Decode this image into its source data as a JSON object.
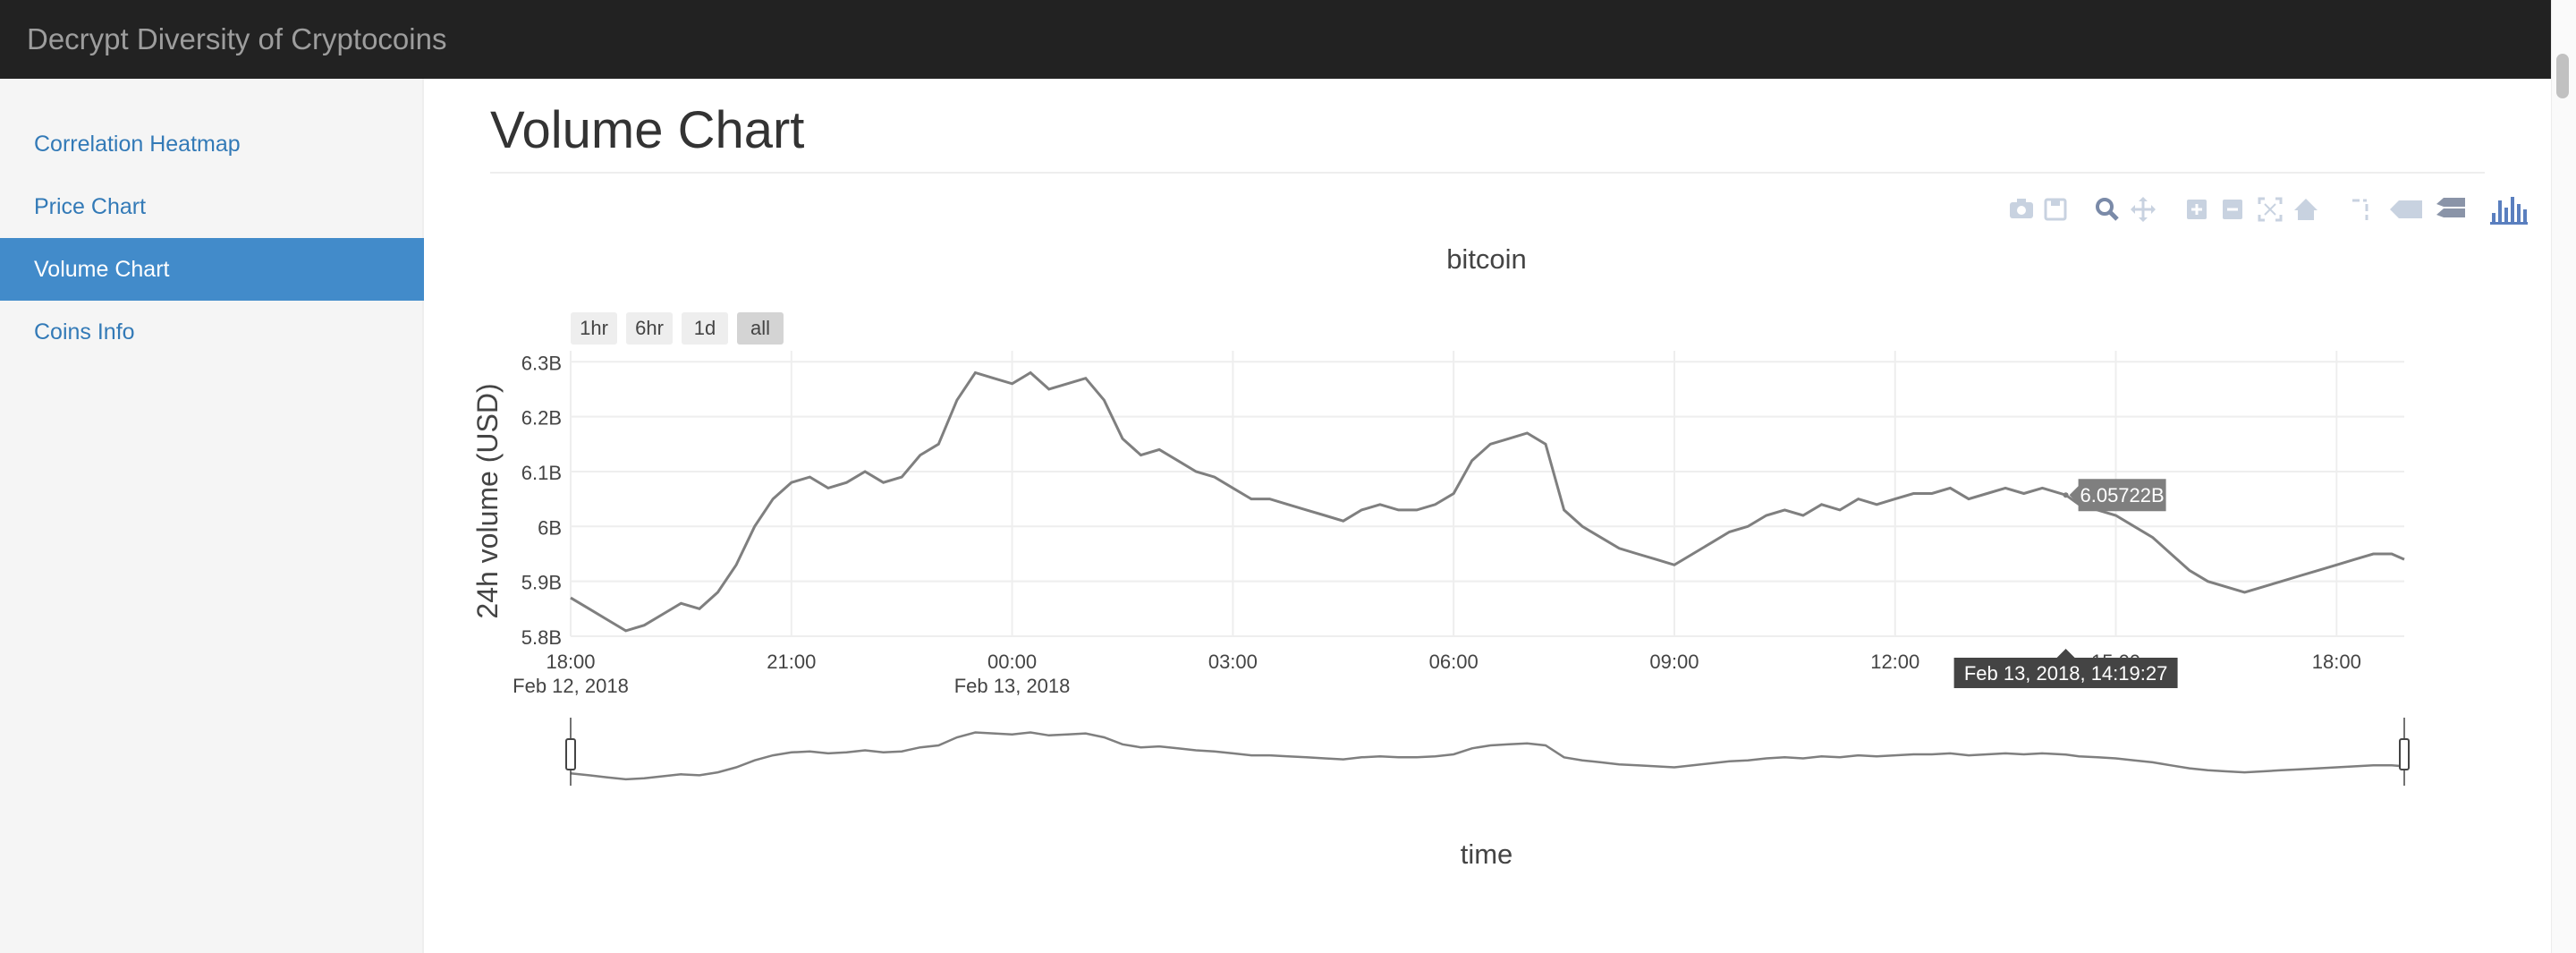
{
  "app": {
    "brand": "Decrypt Diversity of Cryptocoins"
  },
  "sidebar": {
    "items": [
      {
        "label": "Correlation Heatmap",
        "active": false
      },
      {
        "label": "Price Chart",
        "active": false
      },
      {
        "label": "Volume Chart",
        "active": true
      },
      {
        "label": "Coins Info",
        "active": false
      }
    ]
  },
  "main": {
    "title": "Volume Chart"
  },
  "modebar": {
    "buttons": [
      "camera-icon",
      "save-icon",
      "zoom-icon",
      "pan-icon",
      "zoom-in-icon",
      "zoom-out-icon",
      "autoscale-icon",
      "reset-axes-icon",
      "spike-lines-icon",
      "hover-closest-icon",
      "hover-compare-icon",
      "plotly-logo-icon"
    ]
  },
  "range_selector": {
    "buttons": [
      "1hr",
      "6hr",
      "1d",
      "all"
    ],
    "active": "all"
  },
  "chart_data": {
    "type": "line",
    "title": "bitcoin",
    "xlabel": "time",
    "ylabel": "24h volume (USD)",
    "x_range": [
      "2018-02-12 18:00",
      "2018-02-13 18:55"
    ],
    "ylim": [
      5.8,
      6.32
    ],
    "y_unit": "B",
    "x_ticks": [
      {
        "label": "18:00",
        "sublabel": "Feb 12, 2018"
      },
      {
        "label": "21:00",
        "sublabel": ""
      },
      {
        "label": "00:00",
        "sublabel": "Feb 13, 2018"
      },
      {
        "label": "03:00",
        "sublabel": ""
      },
      {
        "label": "06:00",
        "sublabel": ""
      },
      {
        "label": "09:00",
        "sublabel": ""
      },
      {
        "label": "12:00",
        "sublabel": ""
      },
      {
        "label": "15:00",
        "sublabel": ""
      },
      {
        "label": "18:00",
        "sublabel": ""
      }
    ],
    "y_ticks": [
      "5.8B",
      "5.9B",
      "6B",
      "6.1B",
      "6.2B",
      "6.3B"
    ],
    "grid": true,
    "range_slider": true,
    "hover": {
      "x_label": "Feb 13, 2018, 14:19:27",
      "y_label": "6.05722B",
      "x": 20.32,
      "y": 6.05722
    },
    "series": [
      {
        "color": "#7f7f7f",
        "x": [
          0,
          0.25,
          0.5,
          0.75,
          1,
          1.25,
          1.5,
          1.75,
          2,
          2.25,
          2.5,
          2.75,
          3,
          3.25,
          3.5,
          3.75,
          4,
          4.25,
          4.5,
          4.75,
          5,
          5.25,
          5.5,
          5.75,
          6,
          6.25,
          6.5,
          6.75,
          7,
          7.25,
          7.5,
          7.75,
          8,
          8.25,
          8.5,
          8.75,
          9,
          9.25,
          9.5,
          9.75,
          10,
          10.25,
          10.5,
          10.75,
          11,
          11.25,
          11.5,
          11.75,
          12,
          12.25,
          12.5,
          12.75,
          13,
          13.25,
          13.5,
          13.75,
          14,
          14.25,
          14.5,
          14.75,
          15,
          15.25,
          15.5,
          15.75,
          16,
          16.25,
          16.5,
          16.75,
          17,
          17.25,
          17.5,
          17.75,
          18,
          18.25,
          18.5,
          18.75,
          19,
          19.25,
          19.5,
          19.75,
          20,
          20.32,
          20.5,
          20.75,
          21,
          21.25,
          21.5,
          21.75,
          22,
          22.25,
          22.5,
          22.75,
          23,
          23.25,
          23.5,
          23.75,
          24,
          24.25,
          24.5,
          24.75,
          24.92
        ],
        "y": [
          5.87,
          5.85,
          5.83,
          5.81,
          5.82,
          5.84,
          5.86,
          5.85,
          5.88,
          5.93,
          6.0,
          6.05,
          6.08,
          6.09,
          6.07,
          6.08,
          6.1,
          6.08,
          6.09,
          6.13,
          6.15,
          6.23,
          6.28,
          6.27,
          6.26,
          6.28,
          6.25,
          6.26,
          6.27,
          6.23,
          6.16,
          6.13,
          6.14,
          6.12,
          6.1,
          6.09,
          6.07,
          6.05,
          6.05,
          6.04,
          6.03,
          6.02,
          6.01,
          6.03,
          6.04,
          6.03,
          6.03,
          6.04,
          6.06,
          6.12,
          6.15,
          6.16,
          6.17,
          6.15,
          6.03,
          6.0,
          5.98,
          5.96,
          5.95,
          5.94,
          5.93,
          5.95,
          5.97,
          5.99,
          6.0,
          6.02,
          6.03,
          6.02,
          6.04,
          6.03,
          6.05,
          6.04,
          6.05,
          6.06,
          6.06,
          6.07,
          6.05,
          6.06,
          6.07,
          6.06,
          6.07,
          6.05722,
          6.04,
          6.03,
          6.02,
          6.0,
          5.98,
          5.95,
          5.92,
          5.9,
          5.89,
          5.88,
          5.89,
          5.9,
          5.91,
          5.92,
          5.93,
          5.94,
          5.95,
          5.95,
          5.94
        ]
      }
    ]
  }
}
